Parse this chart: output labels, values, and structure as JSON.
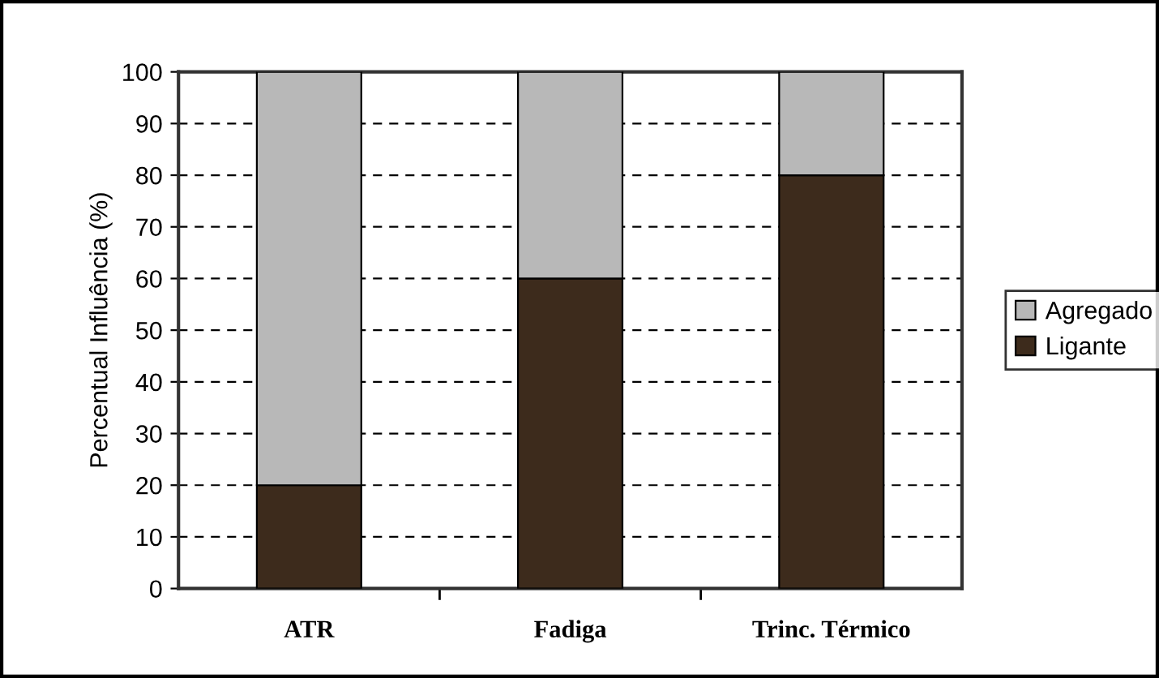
{
  "chart_data": {
    "type": "bar",
    "stacked": true,
    "ylabel": "Percentual Influência (%)",
    "categories": [
      "ATR",
      "Fadiga",
      "Trinc. Térmico"
    ],
    "series": [
      {
        "name": "Ligante",
        "color": "#3d2b1c",
        "values": [
          20,
          60,
          80
        ]
      },
      {
        "name": "Agregado",
        "color": "#b8b8b8",
        "values": [
          80,
          40,
          20
        ]
      }
    ],
    "ylim": [
      0,
      100
    ],
    "yticks": [
      0,
      10,
      20,
      30,
      40,
      50,
      60,
      70,
      80,
      90,
      100
    ],
    "grid": "y",
    "legend": "right"
  }
}
